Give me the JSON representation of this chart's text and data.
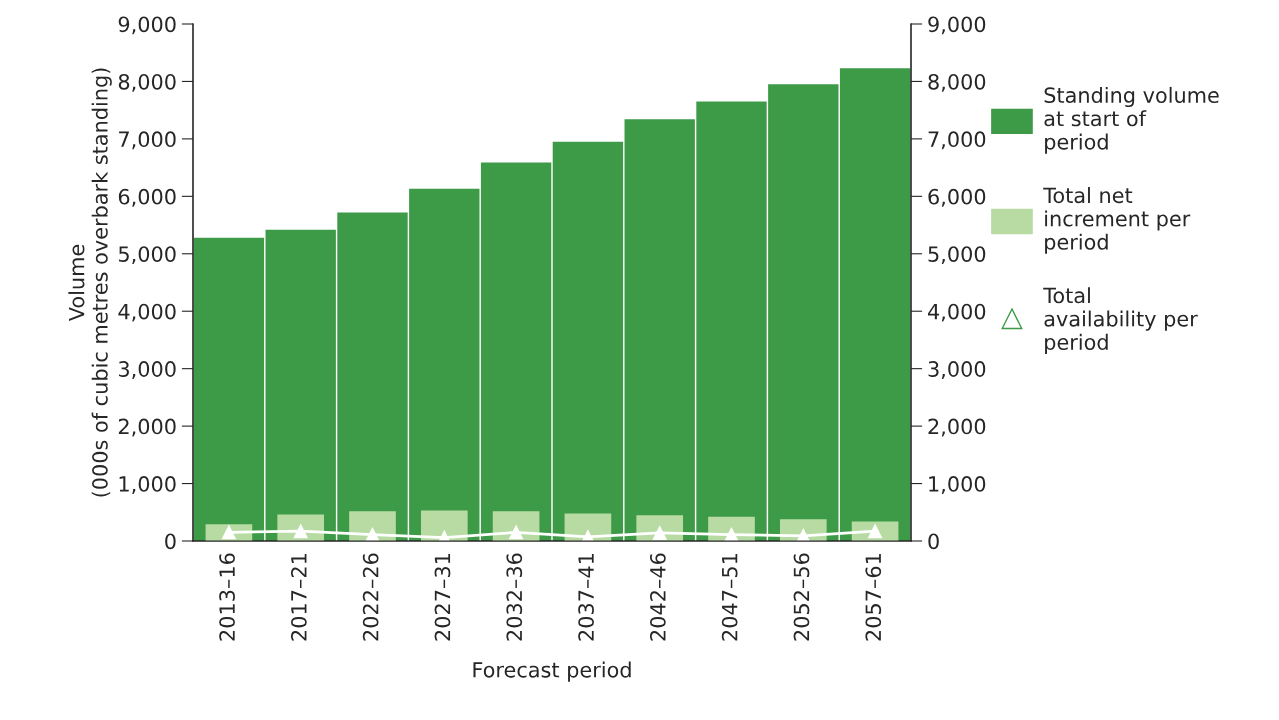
{
  "chart_data": {
    "type": "bar",
    "xlabel": "Forecast period",
    "ylabel": "Volume\n(000s of cubic metres overbark standing)",
    "categories": [
      "2013–16",
      "2017–21",
      "2022–26",
      "2027–31",
      "2032–36",
      "2037–41",
      "2042–46",
      "2047–51",
      "2052–56",
      "2057–61"
    ],
    "series": [
      {
        "name": "Standing volume at start of period",
        "color": "#3d9a47",
        "values": [
          5280,
          5420,
          5720,
          6130,
          6590,
          6950,
          7340,
          7650,
          7950,
          8230
        ]
      },
      {
        "name": "Total net increment per period",
        "color": "#b7dba3",
        "values": [
          290,
          460,
          520,
          530,
          520,
          480,
          450,
          420,
          380,
          340
        ]
      },
      {
        "name": "Total availability per period",
        "type": "line",
        "color": "#ffffff",
        "marker": "triangle",
        "line_style": "solid",
        "values": [
          150,
          170,
          110,
          60,
          150,
          70,
          140,
          110,
          90,
          170
        ]
      }
    ],
    "ylim": [
      0,
      9000
    ],
    "yticks": [
      0,
      {
        "value": 1000,
        "label": "1,000"
      },
      {
        "value": 2000,
        "label": "2,000"
      },
      {
        "value": 3000,
        "label": "3,000"
      },
      {
        "value": 4000,
        "label": "4,000"
      },
      {
        "value": 5000,
        "label": "5,000"
      },
      {
        "value": 6000,
        "label": "6,000"
      },
      {
        "value": 7000,
        "label": "7,000"
      },
      {
        "value": 8000,
        "label": "8,000"
      },
      {
        "value": 9000,
        "label": "9,000"
      }
    ],
    "y2lim": [
      0,
      9000
    ],
    "y2ticks": [
      0,
      {
        "value": 1000,
        "label": "1,000"
      },
      {
        "value": 2000,
        "label": "2,000"
      },
      {
        "value": 3000,
        "label": "3,000"
      },
      {
        "value": 4000,
        "label": "4,000"
      },
      {
        "value": 5000,
        "label": "5,000"
      },
      {
        "value": 6000,
        "label": "6,000"
      },
      {
        "value": 7000,
        "label": "7,000"
      },
      {
        "value": 8000,
        "label": "8,000"
      },
      {
        "value": 9000,
        "label": "9,000"
      }
    ],
    "grid": false,
    "legend": "right"
  }
}
